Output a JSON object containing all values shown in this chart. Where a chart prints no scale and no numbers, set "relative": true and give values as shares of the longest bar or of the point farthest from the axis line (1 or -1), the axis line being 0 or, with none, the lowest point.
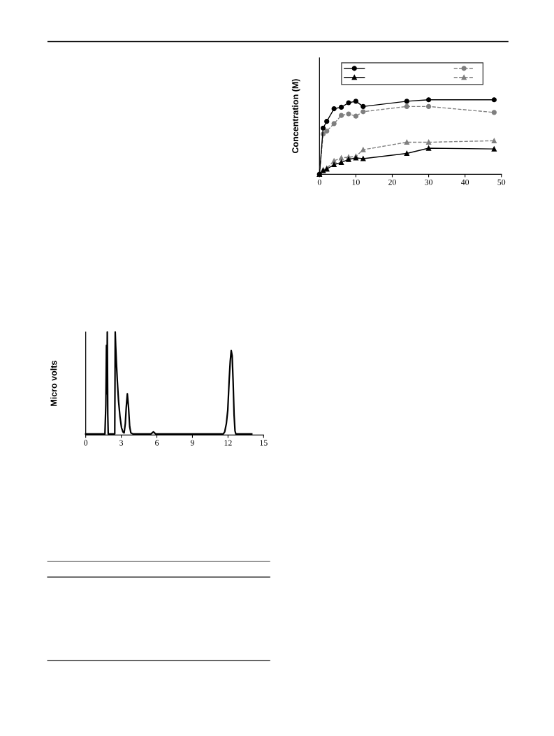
{
  "chart_data": [
    {
      "type": "line",
      "ylabel": "Concentration (M)",
      "relative": true,
      "tick_labels": "x",
      "x": [
        0,
        1,
        2,
        4,
        6,
        8,
        10,
        12,
        24,
        30,
        48
      ],
      "xlim": [
        0,
        50
      ],
      "xticks": [
        0,
        10,
        20,
        30,
        40,
        50
      ],
      "series": [
        {
          "color": "#000000",
          "marker": "circle",
          "line_style": "solid",
          "values": [
            0,
            0.62,
            0.71,
            0.88,
            0.9,
            0.96,
            0.98,
            0.91,
            0.98,
            1.0,
            1.0
          ]
        },
        {
          "color": "#7f7f7f",
          "marker": "circle",
          "line_style": "dashed",
          "values": [
            0,
            0.54,
            0.58,
            0.68,
            0.79,
            0.81,
            0.78,
            0.84,
            0.91,
            0.91,
            0.83
          ]
        },
        {
          "color": "#000000",
          "marker": "triangle",
          "line_style": "solid",
          "values": [
            0,
            0.05,
            0.07,
            0.13,
            0.16,
            0.2,
            0.22,
            0.21,
            0.28,
            0.35,
            0.34
          ]
        },
        {
          "color": "#7f7f7f",
          "marker": "triangle",
          "line_style": "dashed",
          "values": [
            0,
            0.06,
            0.08,
            0.18,
            0.22,
            0.23,
            0.24,
            0.33,
            0.43,
            0.43,
            0.45
          ]
        }
      ]
    },
    {
      "type": "line",
      "ylabel": "Micro volts",
      "relative": true,
      "tick_labels": "x",
      "line_style": "solid",
      "color": "#000000",
      "xlim": [
        0,
        15
      ],
      "xticks": [
        0,
        3,
        6,
        9,
        12,
        15
      ],
      "x": [
        0,
        1.62,
        1.7,
        1.75,
        1.79,
        1.82,
        1.86,
        1.9,
        2.45,
        2.49,
        2.53,
        2.59,
        2.67,
        2.77,
        2.89,
        3.02,
        3.14,
        3.24,
        3.34,
        3.42,
        3.51,
        3.61,
        3.71,
        3.81,
        3.97,
        5.5,
        5.71,
        5.9,
        11.6,
        11.72,
        11.86,
        11.98,
        12.1,
        12.19,
        12.27,
        12.35,
        12.43,
        12.51,
        12.59,
        12.66,
        14.0
      ],
      "values": [
        0.01,
        0.01,
        0.3,
        0.87,
        0.4,
        1.0,
        0.2,
        0.01,
        0.01,
        1.0,
        0.86,
        0.7,
        0.52,
        0.33,
        0.18,
        0.07,
        0.03,
        0.02,
        0.11,
        0.27,
        0.4,
        0.27,
        0.08,
        0.02,
        0.01,
        0.01,
        0.03,
        0.01,
        0.01,
        0.03,
        0.11,
        0.24,
        0.54,
        0.72,
        0.82,
        0.77,
        0.52,
        0.2,
        0.04,
        0.01,
        0.01
      ]
    }
  ]
}
